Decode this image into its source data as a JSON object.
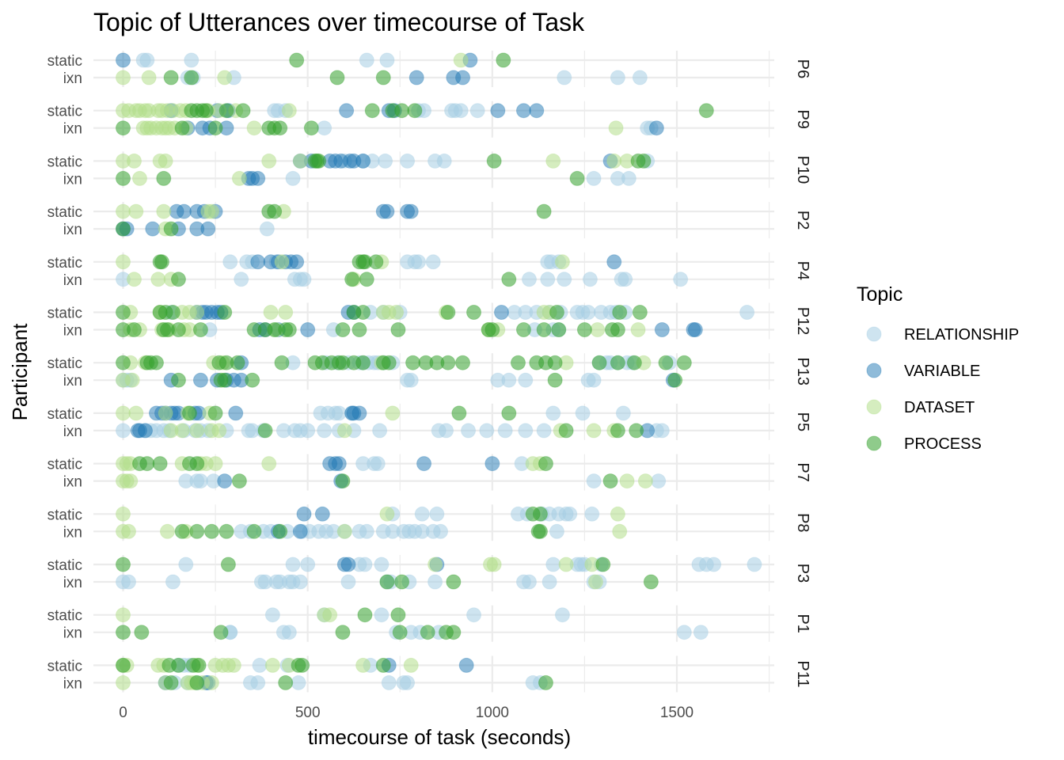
{
  "chart_data": {
    "type": "scatter",
    "title": "Topic of Utterances over timecourse of Task",
    "xlabel": "timecourse of task (seconds)",
    "ylabel": "Participant",
    "xlim": [
      -80,
      1770
    ],
    "x_ticks": [
      0,
      500,
      1000,
      1500
    ],
    "x_tick_labels": [
      "0",
      "500",
      "1000",
      "1500"
    ],
    "grid": true,
    "legend": {
      "title": "Topic",
      "position": "right",
      "entries": [
        {
          "name": "RELATIONSHIP",
          "color": "#a6cee3"
        },
        {
          "name": "VARIABLE",
          "color": "#1f78b4"
        },
        {
          "name": "DATASET",
          "color": "#b2df8a"
        },
        {
          "name": "PROCESS",
          "color": "#33a02c"
        }
      ]
    },
    "conditions": [
      "static",
      "ixn"
    ],
    "panels": [
      {
        "participant": "P6",
        "static": {
          "RELATIONSHIP": [
            55,
            65,
            185,
            660,
            715
          ],
          "VARIABLE": [
            0,
            940
          ],
          "DATASET": [
            915
          ],
          "PROCESS": [
            470,
            1030
          ]
        },
        "ixn": {
          "RELATIONSHIP": [
            175,
            190,
            300,
            1195,
            1340,
            1400
          ],
          "VARIABLE": [
            795,
            895,
            920
          ],
          "DATASET": [
            0,
            70,
            275
          ],
          "PROCESS": [
            130,
            185,
            580,
            705
          ]
        }
      },
      {
        "participant": "P9",
        "static": {
          "RELATIONSHIP": [
            410,
            420,
            440,
            800,
            815,
            890,
            900,
            915,
            960
          ],
          "VARIABLE": [
            130,
            255,
            285,
            605,
            720,
            735,
            1015,
            1085,
            1120
          ],
          "DATASET": [
            0,
            15,
            35,
            45,
            60,
            70,
            95,
            105,
            120,
            135,
            155,
            170,
            230,
            260,
            305,
            450
          ],
          "PROCESS": [
            185,
            200,
            215,
            225,
            280,
            325,
            675,
            730,
            755,
            790,
            1580
          ]
        },
        "ixn": {
          "RELATIONSHIP": [
            545,
            1420,
            1430
          ],
          "VARIABLE": [
            175,
            215,
            235,
            280,
            1445
          ],
          "DATASET": [
            55,
            65,
            75,
            90,
            105,
            115,
            125,
            140,
            170,
            355,
            1335
          ],
          "PROCESS": [
            0,
            160,
            250,
            395,
            410,
            425,
            510
          ]
        }
      },
      {
        "participant": "P10",
        "static": {
          "RELATIONSHIP": [
            600,
            650,
            675,
            710,
            770,
            845,
            870,
            1420
          ],
          "VARIABLE": [
            480,
            510,
            560,
            575,
            590,
            615,
            625,
            650,
            1320
          ],
          "DATASET": [
            0,
            30,
            100,
            115,
            395,
            480,
            1165,
            1330,
            1365
          ],
          "PROCESS": [
            520,
            525,
            530,
            1005,
            1395,
            1410
          ]
        },
        "ixn": {
          "RELATIONSHIP": [
            460,
            1275,
            1340,
            1370
          ],
          "VARIABLE": [
            340,
            350,
            365
          ],
          "DATASET": [
            45,
            315
          ],
          "PROCESS": [
            0,
            110,
            1230
          ]
        }
      },
      {
        "participant": "P2",
        "static": {
          "RELATIONSHIP": [],
          "VARIABLE": [
            145,
            165,
            200,
            220,
            250,
            705,
            715,
            770,
            780
          ],
          "DATASET": [
            0,
            35,
            110,
            230,
            240,
            435
          ],
          "PROCESS": [
            395,
            410,
            1140
          ]
        },
        "ixn": {
          "RELATIONSHIP": [
            390
          ],
          "VARIABLE": [
            0,
            10,
            80,
            150,
            200,
            230
          ],
          "DATASET": [
            115
          ],
          "PROCESS": [
            0,
            130
          ]
        }
      },
      {
        "participant": "P4",
        "static": {
          "RELATIONSHIP": [
            290,
            335,
            350,
            415,
            770,
            790,
            800,
            840,
            1150,
            1160,
            1180
          ],
          "VARIABLE": [
            365,
            400,
            420,
            440,
            455,
            470,
            1330
          ],
          "DATASET": [
            0,
            430,
            700,
            1190
          ],
          "PROCESS": [
            100,
            105,
            640,
            650,
            655,
            685
          ]
        },
        "ixn": {
          "RELATIONSHIP": [
            0,
            320,
            465,
            480,
            490,
            1100,
            1150,
            1195,
            1265,
            1350,
            1360,
            1510
          ],
          "VARIABLE": [],
          "DATASET": [
            30,
            95,
            130,
            625
          ],
          "PROCESS": [
            150,
            620,
            660,
            1045
          ]
        }
      },
      {
        "participant": "P12",
        "static": {
          "RELATIONSHIP": [
            130,
            670,
            705,
            750,
            1060,
            1090,
            1120,
            1155,
            1185,
            1230,
            1245,
            1260,
            1295,
            1320,
            1335,
            1360,
            1690
          ],
          "VARIABLE": [
            200,
            215,
            225,
            240,
            255,
            265,
            610,
            625,
            1025
          ],
          "DATASET": [
            20,
            100,
            160,
            180,
            200,
            400,
            440,
            705,
            720,
            740,
            875,
            1140,
            1155
          ],
          "PROCESS": [
            0,
            100,
            115,
            135,
            275,
            625,
            650,
            880,
            950,
            1175,
            1345,
            1400
          ]
        },
        "ixn": {
          "RELATIONSHIP": [
            235,
            570,
            1115,
            1165,
            1180
          ],
          "VARIABLE": [
            370,
            385,
            420,
            500,
            1460,
            1545,
            1550
          ],
          "DATASET": [
            20,
            45,
            105,
            125,
            165,
            180,
            415,
            990,
            1015,
            1285,
            1395
          ],
          "PROCESS": [
            0,
            30,
            110,
            120,
            150,
            210,
            355,
            385,
            410,
            440,
            450,
            595,
            640,
            745,
            990,
            1000,
            1085,
            1140,
            1180,
            1250,
            1325,
            1340
          ]
        }
      },
      {
        "participant": "P13",
        "static": {
          "RELATIONSHIP": [
            460,
            550,
            580,
            610,
            640,
            650,
            665,
            680,
            690,
            705,
            730,
            1290,
            1310,
            1320,
            1340,
            1365,
            1380,
            1480
          ],
          "VARIABLE": [
            320
          ],
          "DATASET": [
            20,
            60,
            245,
            270,
            700,
            1200,
            1410
          ],
          "PROCESS": [
            0,
            65,
            75,
            90,
            260,
            280,
            310,
            430,
            520,
            540,
            565,
            585,
            595,
            625,
            650,
            705,
            720,
            785,
            820,
            850,
            880,
            920,
            1070,
            1120,
            1145,
            1170,
            1290,
            1340,
            1385,
            1470,
            1520
          ]
        },
        "ixn": {
          "RELATIONSHIP": [
            0,
            10,
            20,
            770,
            780,
            1015,
            1045,
            1090,
            1260,
            1275
          ],
          "VARIABLE": [
            130,
            210,
            255,
            280,
            300,
            320,
            1490
          ],
          "DATASET": [
            0,
            25
          ],
          "PROCESS": [
            150,
            265,
            275,
            350,
            1170,
            1495
          ]
        }
      },
      {
        "participant": "P5",
        "static": {
          "RELATIONSHIP": [
            535,
            555,
            575,
            585,
            620,
            1165,
            1245,
            1355
          ],
          "VARIABLE": [
            90,
            105,
            115,
            130,
            140,
            150,
            195,
            205,
            305,
            620,
            625,
            640
          ],
          "DATASET": [
            0,
            35,
            115,
            175,
            235,
            730
          ],
          "PROCESS": [
            180,
            250,
            910,
            1045
          ]
        },
        "ixn": {
          "RELATIONSHIP": [
            0,
            60,
            75,
            90,
            110,
            125,
            165,
            195,
            210,
            230,
            280,
            340,
            350,
            380,
            435,
            465,
            480,
            500,
            545,
            585,
            625,
            695,
            855,
            875,
            935,
            985,
            1035,
            1090,
            1140,
            1445,
            1460
          ],
          "VARIABLE": [
            40,
            45,
            60,
            1420
          ],
          "DATASET": [
            130,
            160,
            200,
            240,
            260,
            600,
            1185,
            1275,
            1330
          ],
          "PROCESS": [
            385,
            1200,
            1340,
            1390
          ]
        }
      },
      {
        "participant": "P7",
        "static": {
          "RELATIONSHIP": [
            650,
            680,
            690,
            1080
          ],
          "VARIABLE": [
            560,
            575,
            585,
            815,
            1000
          ],
          "DATASET": [
            0,
            10,
            20,
            160,
            210,
            225,
            250,
            395,
            1110,
            1130
          ],
          "PROCESS": [
            45,
            65,
            100,
            180,
            200,
            1145
          ]
        },
        "ixn": {
          "RELATIONSHIP": [
            170,
            200,
            210,
            245,
            1275,
            1450
          ],
          "VARIABLE": [
            275,
            590
          ],
          "DATASET": [
            0,
            10,
            20,
            1365,
            1415
          ],
          "PROCESS": [
            315,
            595,
            1320
          ]
        }
      },
      {
        "participant": "P8",
        "static": {
          "RELATIONSHIP": [
            730,
            810,
            850,
            1070,
            1095,
            1135,
            1155,
            1180,
            1200,
            1210,
            1270
          ],
          "VARIABLE": [
            490,
            540
          ],
          "DATASET": [
            0,
            715,
            1340
          ],
          "PROCESS": [
            1110,
            1130
          ]
        },
        "ixn": {
          "RELATIONSHIP": [
            320,
            345,
            380,
            400,
            445,
            485,
            505,
            530,
            550,
            570,
            600,
            640,
            660,
            705,
            730,
            760,
            775,
            790,
            810,
            840,
            860,
            1175
          ],
          "VARIABLE": [
            420,
            480
          ],
          "DATASET": [
            0,
            15,
            120,
            170,
            600,
            1345
          ],
          "PROCESS": [
            160,
            200,
            240,
            280,
            355,
            425,
            1125,
            1130
          ]
        }
      },
      {
        "participant": "P3",
        "static": {
          "RELATIONSHIP": [
            170,
            460,
            500,
            640,
            655,
            700,
            1165,
            1230,
            1240,
            1250,
            1295,
            1560,
            1580,
            1600,
            1710
          ],
          "VARIABLE": [
            600,
            610,
            850
          ],
          "DATASET": [
            845,
            995,
            1005,
            1200,
            1270
          ],
          "PROCESS": [
            0,
            285,
            1300
          ]
        },
        "ixn": {
          "RELATIONSHIP": [
            0,
            15,
            135,
            375,
            385,
            415,
            425,
            450,
            460,
            480,
            610,
            715,
            725,
            775,
            845,
            1085,
            1100,
            1155,
            1275,
            1290
          ],
          "VARIABLE": [],
          "DATASET": [
            1280
          ],
          "PROCESS": [
            715,
            755,
            895,
            1430
          ]
        }
      },
      {
        "participant": "P1",
        "static": {
          "RELATIONSHIP": [
            405,
            545,
            700,
            950,
            1190
          ],
          "VARIABLE": [],
          "DATASET": [
            0,
            545,
            560
          ],
          "PROCESS": [
            655,
            745
          ]
        },
        "ixn": {
          "RELATIONSHIP": [
            290,
            290,
            435,
            450,
            740,
            780,
            805,
            855,
            1520,
            1565
          ],
          "VARIABLE": [],
          "DATASET": [],
          "PROCESS": [
            0,
            50,
            265,
            595,
            750,
            825,
            875,
            895
          ]
        }
      },
      {
        "participant": "P11",
        "static": {
          "RELATIONSHIP": [
            150,
            165,
            180,
            370,
            445,
            670
          ],
          "VARIABLE": [
            720,
            930
          ],
          "DATASET": [
            0,
            10,
            95,
            110,
            200,
            250,
            270,
            285,
            300,
            405,
            450,
            650,
            780
          ],
          "PROCESS": [
            0,
            125,
            150,
            190,
            205,
            475,
            485,
            705
          ]
        },
        "ixn": {
          "RELATIONSHIP": [
            140,
            175,
            200,
            345,
            365,
            475,
            720,
            760,
            770,
            1110,
            1130
          ],
          "VARIABLE": [
            115,
            225,
            230
          ],
          "DATASET": [
            0,
            115,
            175,
            185,
            195,
            215,
            240
          ],
          "PROCESS": [
            130,
            200,
            440,
            1145
          ]
        }
      }
    ]
  }
}
